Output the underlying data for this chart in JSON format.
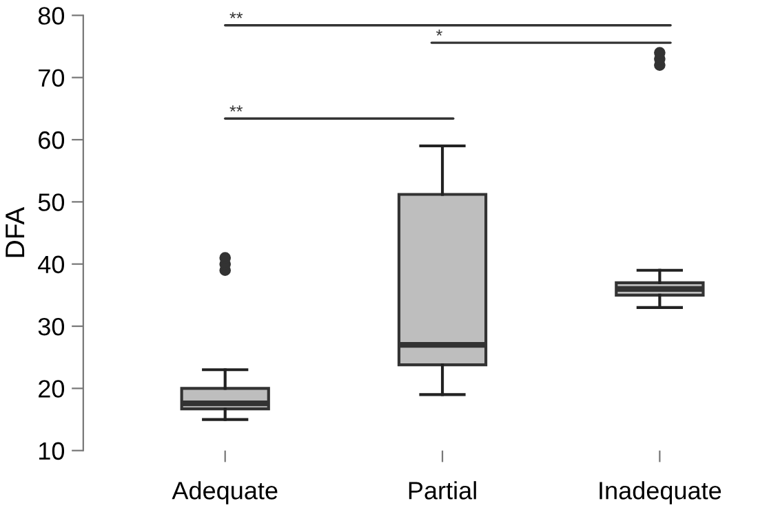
{
  "chart_data": {
    "type": "box",
    "ylabel": "DFA",
    "categories": [
      "Adequate",
      "Partial",
      "Inadequate"
    ],
    "boxes": [
      {
        "low": 15,
        "q1": 16.7,
        "median": 17.6,
        "q3": 20,
        "high": 23,
        "outliers": [
          39,
          40,
          41
        ]
      },
      {
        "low": 19,
        "q1": 23.8,
        "median": 27,
        "q3": 51.2,
        "high": 59
      },
      {
        "low": 33,
        "q1": 35,
        "median": 36,
        "q3": 37,
        "high": 39,
        "outliers": [
          72,
          73,
          74
        ]
      }
    ],
    "color": "#bebebe",
    "ylim": [
      10,
      80
    ],
    "yticks": [
      10,
      20,
      30,
      40,
      50,
      60,
      70,
      80
    ],
    "grid": false,
    "annotations": [
      "**",
      "*",
      "**"
    ]
  }
}
